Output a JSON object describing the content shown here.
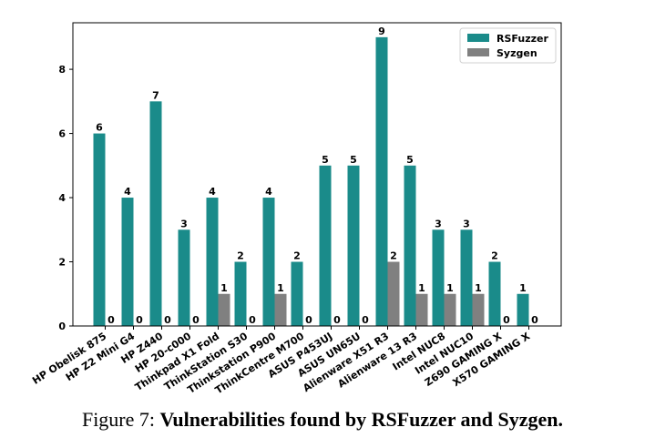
{
  "chart_data": {
    "type": "bar",
    "categories": [
      "HP Obelisk 875",
      "HP Z2 Mini G4",
      "HP Z440",
      "HP 20-c000",
      "Thinkpad X1 Fold",
      "ThinkStation S30",
      "Thinkstation P900",
      "ThinkCentre M700",
      "ASUS P453UJ",
      "ASUS UN65U",
      "Alienware X51 R3",
      "Alienware 13 R3",
      "Intel NUC8",
      "Intel NUC10",
      "Z690 GAMING X",
      "X570 GAMING X"
    ],
    "series": [
      {
        "name": "RSFuzzer",
        "color": "#1a8b8a",
        "values": [
          6,
          4,
          7,
          3,
          4,
          2,
          4,
          2,
          5,
          5,
          9,
          5,
          3,
          3,
          2,
          1
        ],
        "labels": [
          "6",
          "4",
          "7",
          "3",
          "4",
          "2",
          "4",
          "2",
          "5",
          "5",
          "9",
          "5",
          "3",
          "3",
          "2",
          "1"
        ]
      },
      {
        "name": "Syzgen",
        "color": "#808080",
        "values": [
          0,
          0,
          0,
          0,
          1,
          0,
          1,
          0,
          0,
          0,
          2,
          1,
          1,
          1,
          0,
          0
        ],
        "labels": [
          "0",
          "0",
          "0",
          "0",
          "1",
          "0",
          "1",
          "0",
          "0",
          "0",
          "2",
          "1",
          "1",
          "1",
          "0",
          "0"
        ]
      }
    ],
    "ylim": [
      0,
      9.45
    ],
    "yticks": [
      0,
      2,
      4,
      6,
      8
    ],
    "ytick_labels": [
      "0",
      "2",
      "4",
      "6",
      "8"
    ],
    "legend_position": "top-right",
    "grid": false
  },
  "caption": {
    "prefix": "Figure 7: ",
    "bold": "Vulnerabilities found by RSFuzzer and Syzgen."
  }
}
